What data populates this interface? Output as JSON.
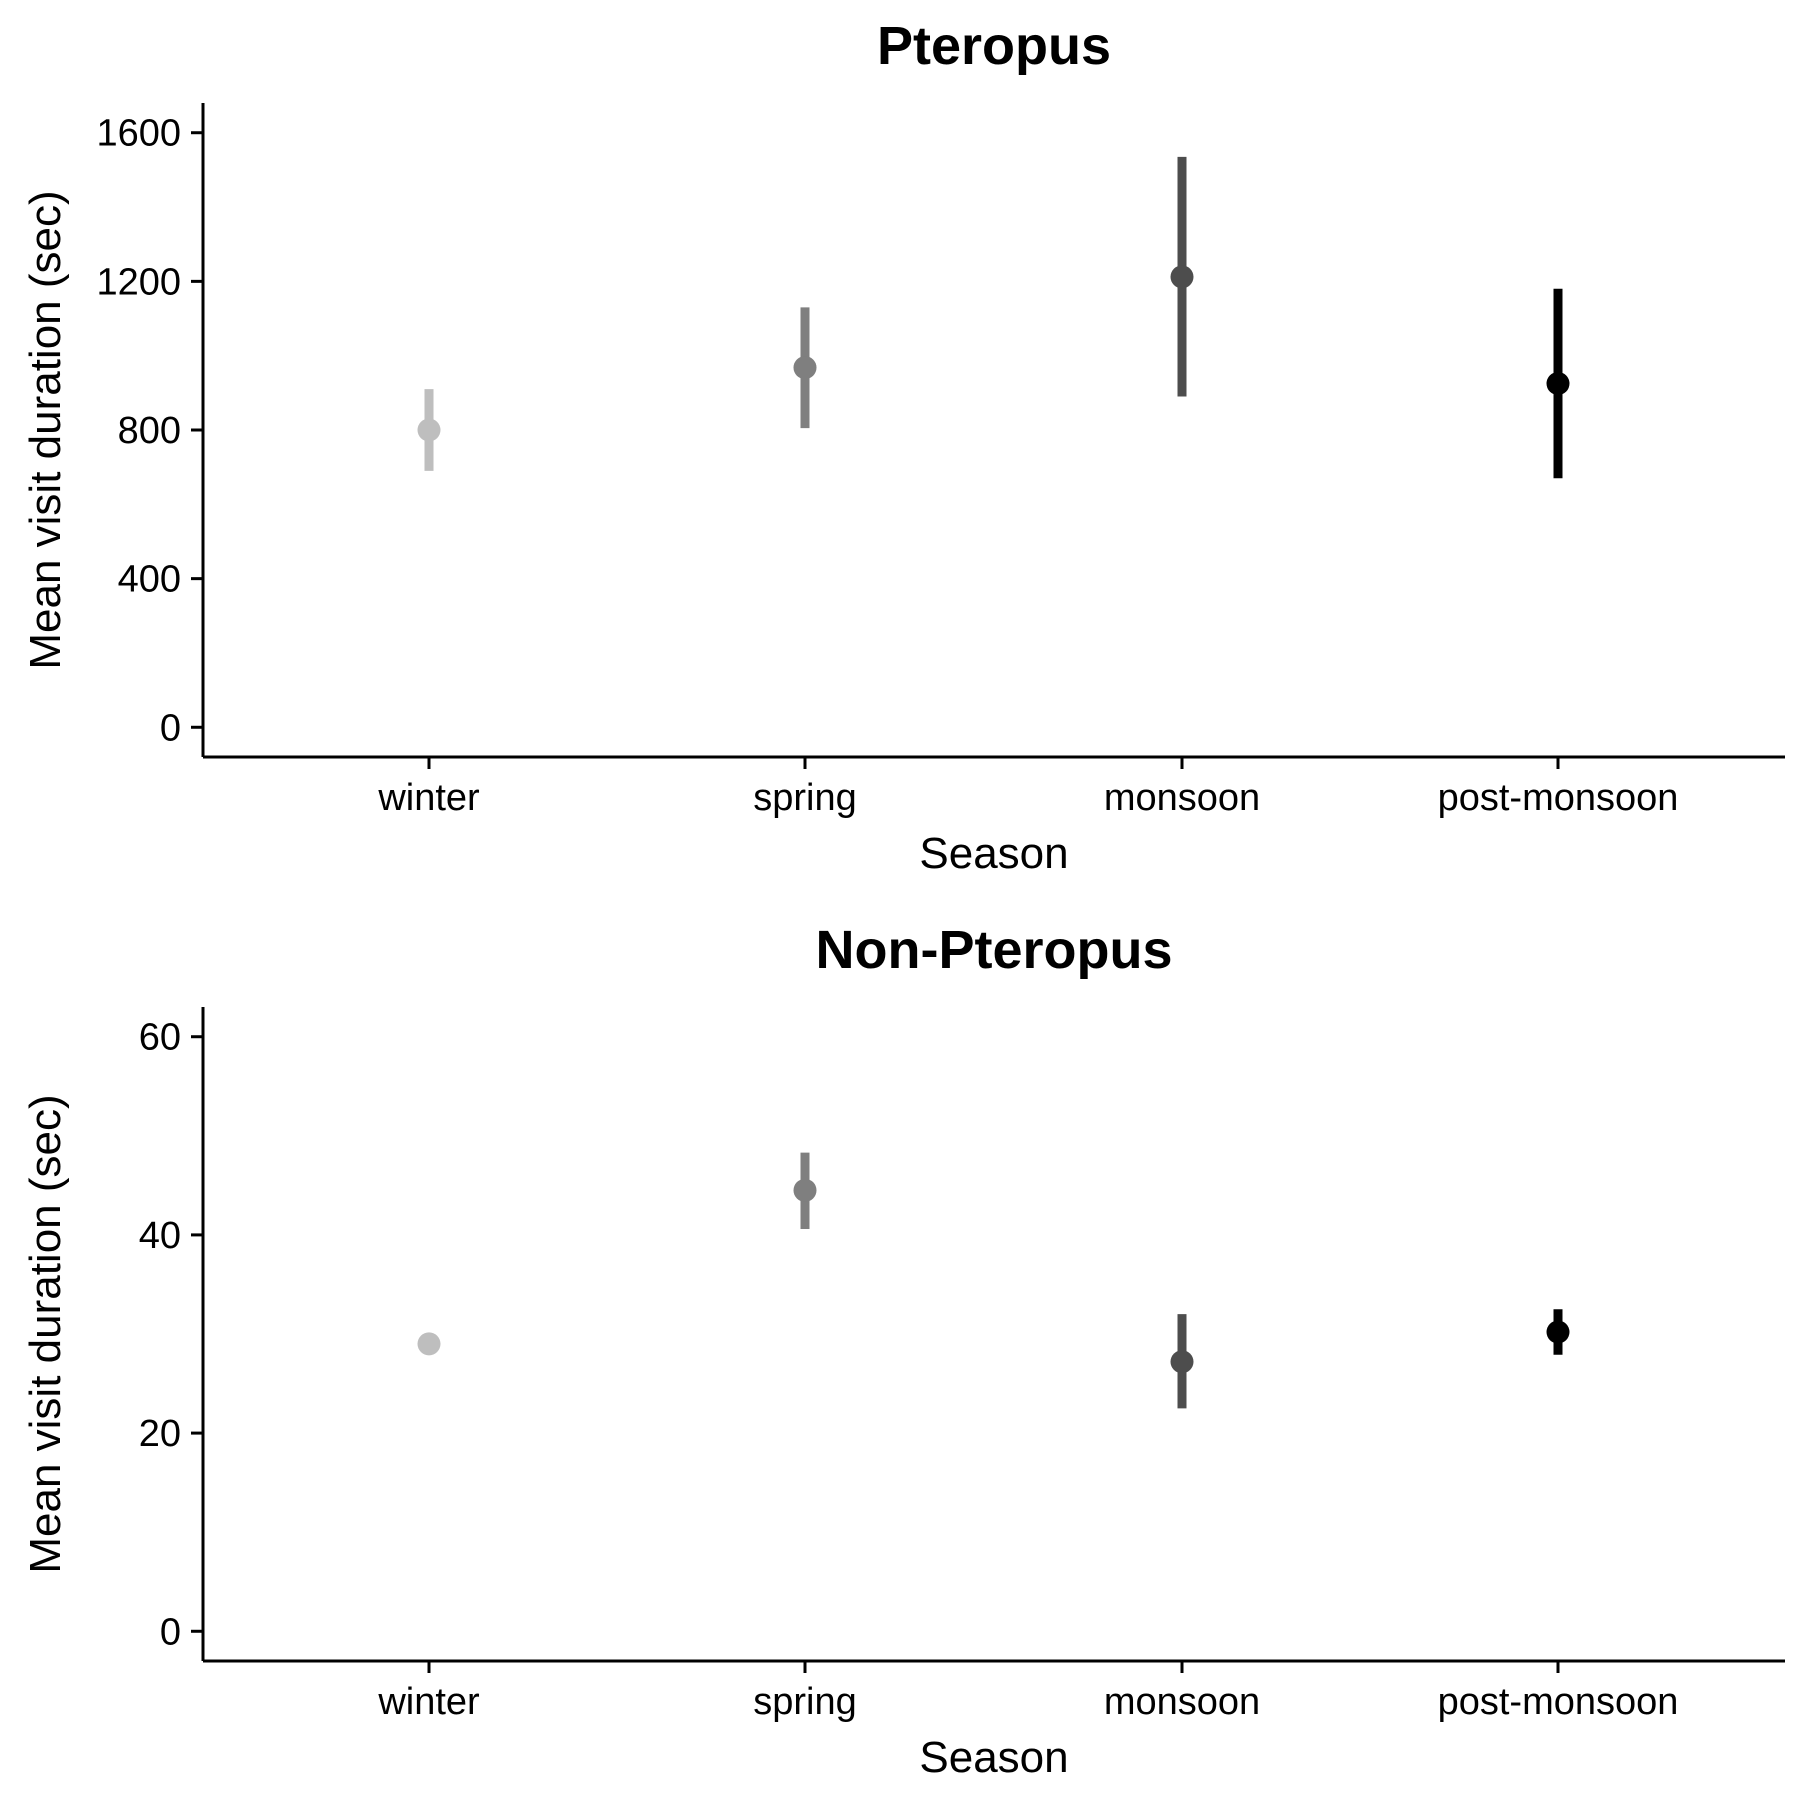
{
  "chart_data": [
    {
      "type": "scatter",
      "title": "Pteropus",
      "xlabel": "Season",
      "ylabel": "Mean visit duration (sec)",
      "categories": [
        "winter",
        "spring",
        "monsoon",
        "post-monsoon"
      ],
      "yticks": [
        0,
        400,
        800,
        1200,
        1600
      ],
      "ylim": [
        -80,
        1680
      ],
      "grid": false,
      "series": [
        {
          "points": [
            {
              "category": "winter",
              "mean": 800,
              "lower": 690,
              "upper": 910,
              "color": "#BEBEBE"
            },
            {
              "category": "spring",
              "mean": 968,
              "lower": 805,
              "upper": 1130,
              "color": "#7F7F7F"
            },
            {
              "category": "monsoon",
              "mean": 1212,
              "lower": 890,
              "upper": 1535,
              "color": "#4D4D4D"
            },
            {
              "category": "post-monsoon",
              "mean": 925,
              "lower": 670,
              "upper": 1180,
              "color": "#000000"
            }
          ]
        }
      ]
    },
    {
      "type": "scatter",
      "title": "Non-Pteropus",
      "xlabel": "Season",
      "ylabel": "Mean visit duration (sec)",
      "categories": [
        "winter",
        "spring",
        "monsoon",
        "post-monsoon"
      ],
      "yticks": [
        0,
        20,
        40,
        60
      ],
      "ylim": [
        -3,
        63
      ],
      "grid": false,
      "series": [
        {
          "points": [
            {
              "category": "winter",
              "mean": 29,
              "lower": 29,
              "upper": 29,
              "color": "#BEBEBE"
            },
            {
              "category": "spring",
              "mean": 44.5,
              "lower": 40.6,
              "upper": 48.3,
              "color": "#7F7F7F"
            },
            {
              "category": "monsoon",
              "mean": 27.2,
              "lower": 22.5,
              "upper": 32,
              "color": "#4D4D4D"
            },
            {
              "category": "post-monsoon",
              "mean": 30.2,
              "lower": 27.9,
              "upper": 32.5,
              "color": "#000000"
            }
          ]
        }
      ]
    }
  ]
}
